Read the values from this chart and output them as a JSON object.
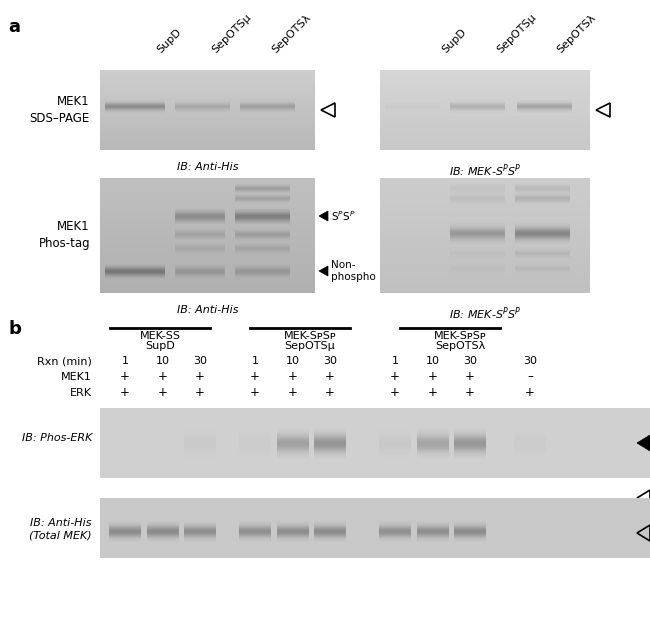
{
  "panel_a_label": "a",
  "panel_b_label": "b",
  "bg_color": "#ffffff",
  "gel_bg_top_left": "#d8d8d8",
  "gel_bg_top_right": "#e8e8e8",
  "gel_bg_bot_left": "#c8c8c8",
  "gel_bg_bot_right": "#dcdcdc",
  "col_labels_left": [
    "SupD",
    "SepOTSμ",
    "SepOTSλ"
  ],
  "col_labels_right": [
    "SupD",
    "SepOTSμ",
    "SepOTSλ"
  ],
  "row_label_top_left": "MEK1\nSDS–PAGE",
  "row_label_bot_left": "MEK1\nPhos-tag",
  "ib_top_left": "IB: Anti-His",
  "ib_top_right": "IB: MEK-SᴘSᴘ",
  "ib_bot_left": "IB: Anti-His",
  "ib_bot_right": "IB: MEK-SᴘSᴘ",
  "arrow_open_label": "",
  "spsp_label": "SᴘSᴘ",
  "nonphospho_label": "Non-\nphospho",
  "b_group_labels": [
    "MEK-SS\nSupD",
    "MEK-SᴘSᴘ\nSepOTSμ",
    "MEK-SᴘSᴘ\nSepOTSλ"
  ],
  "b_rxn_label": "Rxn (min)",
  "b_mek1_label": "MEK1",
  "b_erk_label": "ERK",
  "b_rxn_vals": [
    "1",
    "10",
    "30",
    "1",
    "10",
    "30",
    "1",
    "10",
    "30",
    "30"
  ],
  "b_mek1_vals": [
    "+",
    "+",
    "+",
    "+",
    "+",
    "+",
    "+",
    "+",
    "+",
    "–"
  ],
  "b_erk_vals": [
    "+",
    "+",
    "+",
    "+",
    "+",
    "+",
    "+",
    "+",
    "+",
    "+"
  ],
  "ib_phos_erk": "IB: Phos-ERK",
  "ib_antihis": "IB: Anti-His",
  "total_mek": "(Total MEK)"
}
